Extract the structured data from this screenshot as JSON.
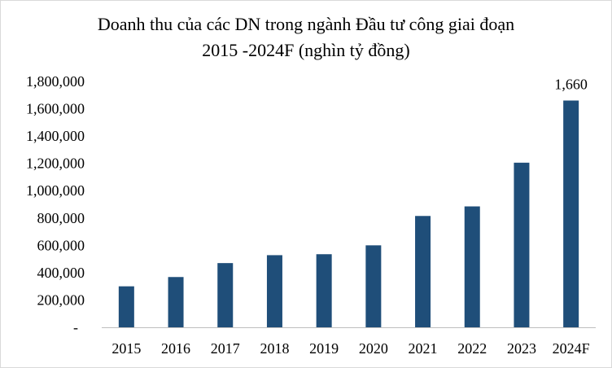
{
  "chart_data": {
    "type": "bar",
    "title": "Doanh thu của các DN trong ngành Đầu tư công giai  đoạn\n2015  -2024F  (nghìn tỷ đồng)",
    "xlabel": "",
    "ylabel": "",
    "categories": [
      "2015",
      "2016",
      "2017",
      "2018",
      "2019",
      "2020",
      "2021",
      "2022",
      "2023",
      "2024F"
    ],
    "values": [
      300000,
      368000,
      470000,
      528000,
      535000,
      600000,
      815000,
      885000,
      1205000,
      1660000
    ],
    "ylim": [
      0,
      1800000
    ],
    "yticks": [
      "-",
      "200,000",
      "400,000",
      "600,000",
      "800,000",
      "1,000,000",
      "1,200,000",
      "1,400,000",
      "1,600,000",
      "1,800,000"
    ],
    "data_labels": [
      {
        "category": "2024F",
        "text": "1,660"
      }
    ],
    "bar_color": "#1f4e79",
    "grid": false,
    "legend": "none"
  }
}
